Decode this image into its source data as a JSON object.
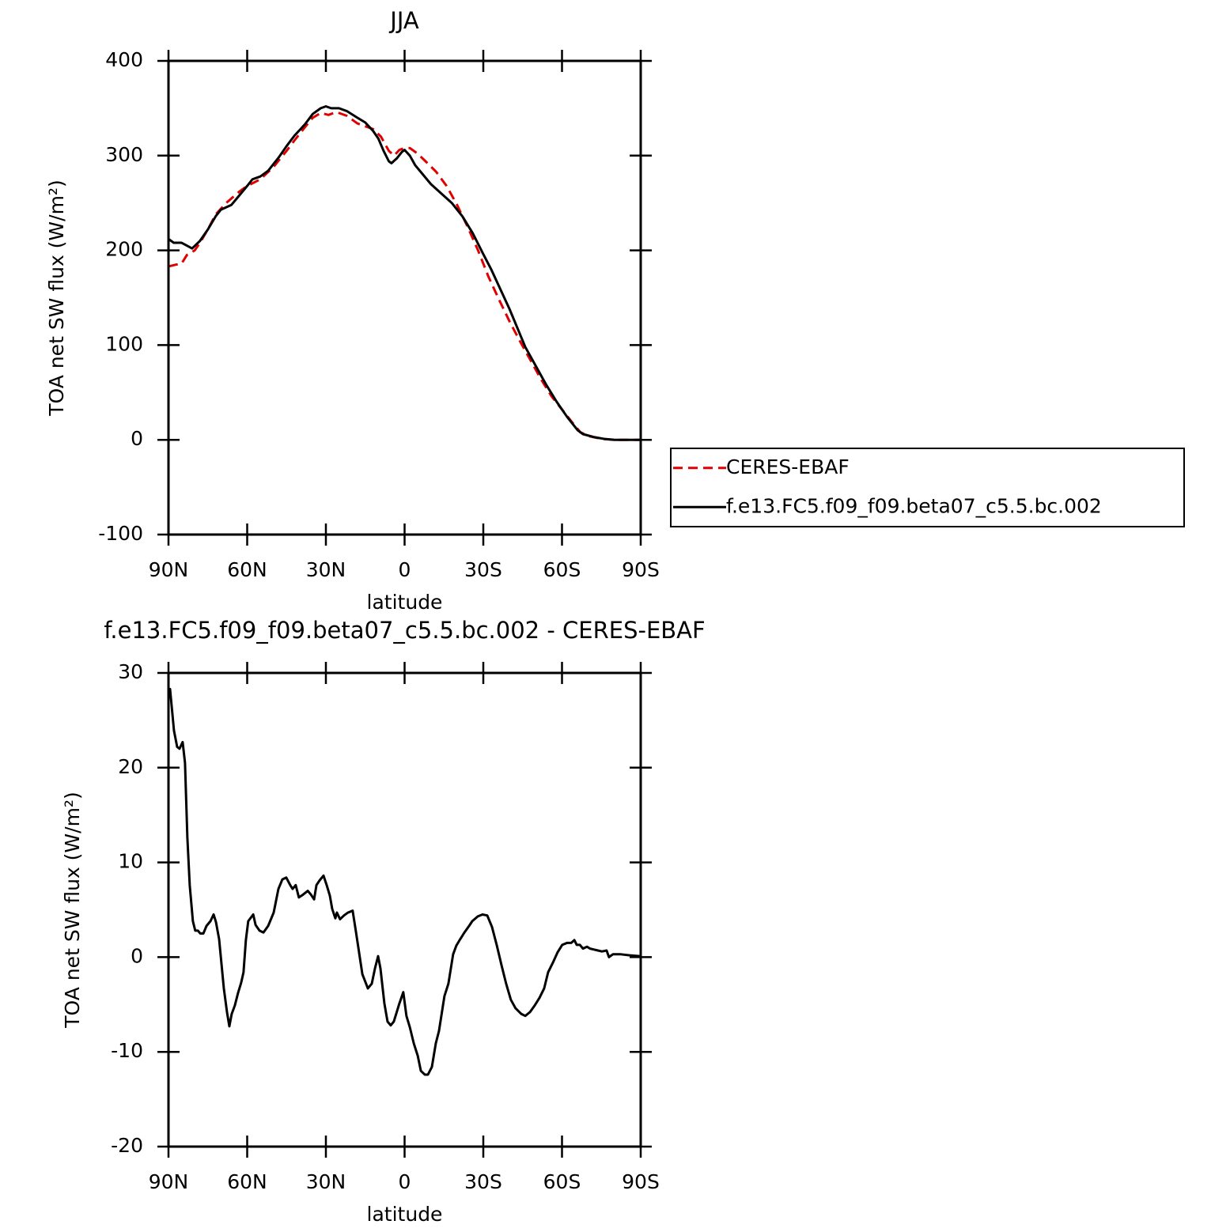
{
  "chart_data": [
    {
      "type": "line",
      "title": "JJA",
      "xlabel": "latitude",
      "ylabel": "TOA net SW flux (W/m²)",
      "xlim": [
        90,
        -90
      ],
      "xticks": [
        {
          "value": 90,
          "label": "90N"
        },
        {
          "value": 60,
          "label": "60N"
        },
        {
          "value": 30,
          "label": "30N"
        },
        0,
        {
          "value": -30,
          "label": "30S"
        },
        {
          "value": -60,
          "label": "60S"
        },
        {
          "value": -90,
          "label": "90S"
        }
      ],
      "ylim": [
        -100,
        400
      ],
      "yticks": [
        -100,
        0,
        100,
        200,
        300,
        400
      ],
      "legend": "outside right",
      "series": [
        {
          "name": "CERES-EBAF",
          "color": "#e00000",
          "dash": true,
          "x": [
            90,
            87,
            85,
            83,
            80,
            78,
            75,
            72,
            68,
            63,
            60,
            55,
            50,
            45,
            42,
            38,
            35,
            32,
            29,
            26,
            22,
            18,
            15,
            12,
            9,
            6,
            4,
            2,
            0,
            -2,
            -5,
            -8,
            -12,
            -16,
            -20,
            -24,
            -28,
            -32,
            -36,
            -40,
            -44,
            -48,
            -52,
            -56,
            -60,
            -64,
            -67,
            -70,
            -75,
            -80,
            -90
          ],
          "values": [
            183,
            185,
            186,
            195,
            200,
            208,
            222,
            238,
            250,
            262,
            268,
            275,
            288,
            305,
            316,
            330,
            340,
            345,
            343,
            346,
            342,
            334,
            331,
            328,
            320,
            305,
            300,
            306,
            308,
            308,
            302,
            294,
            283,
            268,
            248,
            225,
            200,
            172,
            148,
            125,
            104,
            84,
            64,
            46,
            32,
            18,
            8,
            4,
            1,
            0,
            0
          ]
        },
        {
          "name": "f.e13.FC5.f09_f09.beta07_c5.5.bc.002",
          "color": "#000000",
          "dash": false,
          "x": [
            90,
            88,
            85,
            83,
            81,
            78,
            75,
            72,
            70,
            66,
            63,
            60,
            58,
            55,
            52,
            48,
            45,
            42,
            38,
            35,
            32,
            30,
            28,
            25,
            22,
            18,
            15,
            12,
            10,
            8,
            6,
            5,
            3,
            1,
            0,
            -2,
            -4,
            -7,
            -10,
            -14,
            -18,
            -22,
            -26,
            -30,
            -33,
            -36,
            -40,
            -43,
            -46,
            -50,
            -54,
            -58,
            -62,
            -66,
            -68,
            -72,
            -76,
            -80,
            -85,
            -90
          ],
          "values": [
            212,
            208,
            208,
            205,
            202,
            210,
            222,
            236,
            243,
            248,
            258,
            268,
            275,
            278,
            284,
            298,
            310,
            321,
            333,
            344,
            350,
            352,
            350,
            350,
            347,
            340,
            335,
            326,
            318,
            305,
            294,
            292,
            297,
            304,
            306,
            300,
            290,
            280,
            270,
            260,
            250,
            236,
            218,
            196,
            180,
            162,
            138,
            118,
            98,
            78,
            58,
            40,
            24,
            10,
            6,
            3,
            1,
            0,
            0,
            0
          ]
        }
      ]
    },
    {
      "type": "line",
      "title": "f.e13.FC5.f09_f09.beta07_c5.5.bc.002 - CERES-EBAF",
      "xlabel": "latitude",
      "ylabel": "TOA net SW flux (W/m²)",
      "xlim": [
        90,
        -90
      ],
      "xticks": [
        {
          "value": 90,
          "label": "90N"
        },
        {
          "value": 60,
          "label": "60N"
        },
        {
          "value": 30,
          "label": "30N"
        },
        0,
        {
          "value": -30,
          "label": "30S"
        },
        {
          "value": -60,
          "label": "60S"
        },
        {
          "value": -90,
          "label": "90S"
        }
      ],
      "ylim": [
        -20,
        30
      ],
      "yticks": [
        -20,
        -10,
        0,
        10,
        20,
        30
      ],
      "series": [
        {
          "color": "#000000",
          "dash": false,
          "x": [
            90,
            89.4,
            87.9,
            86.7,
            85.8,
            84.6,
            83.7,
            82.8,
            81.9,
            80.7,
            79.8,
            78.8,
            77.9,
            76.7,
            75.5,
            74,
            72.8,
            71.9,
            70.7,
            68.9,
            67.7,
            66.8,
            65.9,
            64.7,
            63.5,
            62.3,
            61.4,
            60.5,
            59.6,
            57.7,
            56.8,
            55.3,
            53.8,
            52,
            49.9,
            48.1,
            46.6,
            45.1,
            43.6,
            42.7,
            41.5,
            40.3,
            38.7,
            36.9,
            35.7,
            34.5,
            33.6,
            32.4,
            30.9,
            29.7,
            28.5,
            27.6,
            26.4,
            25.8,
            24.6,
            23.1,
            21.6,
            19.8,
            18.5,
            16.1,
            14,
            12.5,
            11.3,
            10.1,
            9.2,
            7.7,
            6.5,
            5.3,
            4.1,
            2,
            0.5,
            -0.7,
            -2,
            -3.5,
            -5,
            -6.2,
            -7.7,
            -8.9,
            -10.4,
            -11.9,
            -13.1,
            -15.2,
            -16.7,
            -18.5,
            -19.7,
            -21.2,
            -22.8,
            -24.6,
            -25.8,
            -27.9,
            -29.7,
            -31.5,
            -33.3,
            -35.1,
            -36.9,
            -38.7,
            -40.5,
            -42.3,
            -44.5,
            -46,
            -47.8,
            -49.6,
            -51.4,
            -53.2,
            -54.7,
            -56.5,
            -58.3,
            -60.1,
            -61.9,
            -63.5,
            -64.7,
            -65.6,
            -66.8,
            -68,
            -69.5,
            -70.7,
            -72.2,
            -73.7,
            -75.2,
            -77,
            -77.9,
            -79.4,
            -80.9,
            -82.4,
            -85.5,
            -90
          ],
          "values": [
            28,
            28.3,
            23.9,
            22.2,
            22,
            22.7,
            20.5,
            12.6,
            7.6,
            3.8,
            2.8,
            2.8,
            2.5,
            2.5,
            3.3,
            3.8,
            4.5,
            3.7,
            1.9,
            -3.3,
            -5.8,
            -7.3,
            -6,
            -5.1,
            -3.8,
            -2.7,
            -1.6,
            1.8,
            3.8,
            4.5,
            3.4,
            2.8,
            2.6,
            3.3,
            4.7,
            7.2,
            8.2,
            8.4,
            7.6,
            7.2,
            7.6,
            6.3,
            6.6,
            7,
            6.6,
            6.1,
            7.6,
            8.1,
            8.6,
            7.6,
            6.5,
            5.1,
            4.1,
            4.7,
            4,
            4.4,
            4.7,
            4.9,
            2.6,
            -1.8,
            -3.3,
            -2.8,
            -1.2,
            0.1,
            -1.2,
            -4.9,
            -6.8,
            -7.2,
            -6.8,
            -4.9,
            -3.7,
            -6.2,
            -7.4,
            -9.1,
            -10.4,
            -12,
            -12.4,
            -12.4,
            -11.6,
            -9.1,
            -7.8,
            -4.1,
            -2.8,
            0.3,
            1.2,
            1.9,
            2.6,
            3.3,
            3.8,
            4.3,
            4.5,
            4.4,
            3.2,
            1.3,
            -0.8,
            -2.8,
            -4.5,
            -5.4,
            -6,
            -6.2,
            -5.8,
            -5.1,
            -4.3,
            -3.3,
            -1.6,
            -0.6,
            0.5,
            1.3,
            1.5,
            1.5,
            1.8,
            1.3,
            1.3,
            0.9,
            1.1,
            0.9,
            0.8,
            0.7,
            0.6,
            0.7,
            0,
            0.3,
            0.3,
            0.3,
            0.2,
            0.1
          ]
        }
      ]
    }
  ]
}
